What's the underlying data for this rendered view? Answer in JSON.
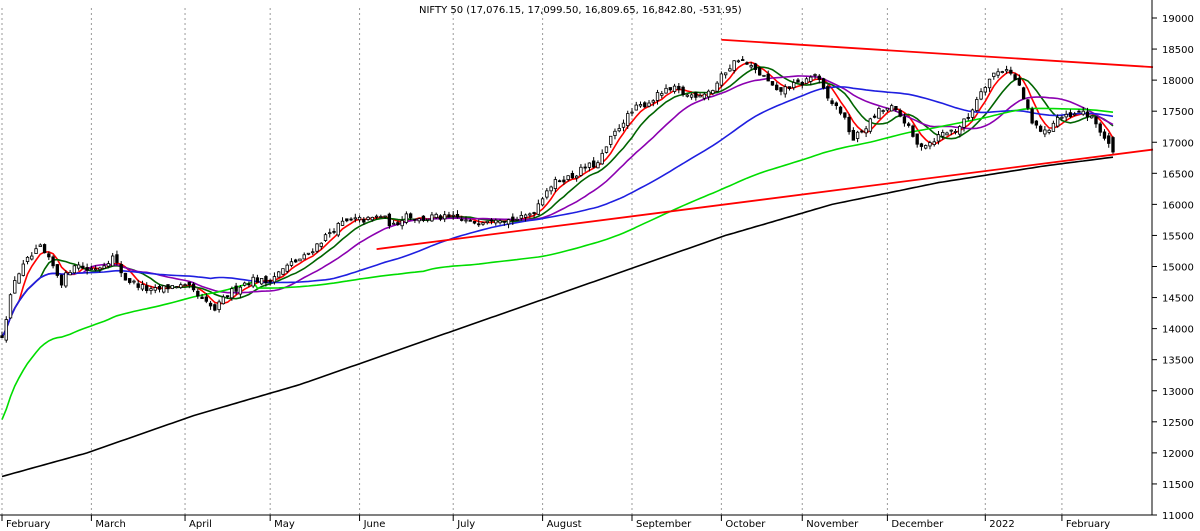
{
  "chart_data": {
    "type": "candlestick",
    "title": "NIFTY 50 (17,076.15, 17,099.50, 16,809.65, 16,842.80, -531.95)",
    "ylim": [
      11000,
      19000
    ],
    "y_ticks": [
      11000,
      11500,
      12000,
      12500,
      13000,
      13500,
      14000,
      14500,
      15000,
      15500,
      16000,
      16500,
      17000,
      17500,
      18000,
      18500,
      19000
    ],
    "y_tick_labels": [
      "11000",
      "11500",
      "12000",
      "12500",
      "13000",
      "13500",
      "14000",
      "14500",
      "15000",
      "15500",
      "16000",
      "16500",
      "17000",
      "17500",
      "18000",
      "18500",
      "19000"
    ],
    "x_month_labels": [
      "February",
      "March",
      "April",
      "May",
      "June",
      "July",
      "August",
      "September",
      "October",
      "November",
      "December",
      "2022",
      "February"
    ],
    "x_month_index": [
      0,
      21,
      43,
      63,
      84,
      106,
      127,
      148,
      169,
      188,
      208,
      231,
      249
    ],
    "n_days": 262,
    "grid": "vertical-dotted",
    "colors": {
      "price": "#000000",
      "ma_red": "#ff0000",
      "ma_darkgreen": "#006400",
      "ma_purple": "#8b00b0",
      "ma_blue": "#1f1fe0",
      "ma_green": "#00dd00",
      "ma_black": "#000000",
      "trendline": "#ff0000"
    },
    "price_anchors": [
      [
        0,
        13900
      ],
      [
        3,
        14800
      ],
      [
        6,
        15100
      ],
      [
        9,
        15300
      ],
      [
        12,
        15000
      ],
      [
        14,
        14750
      ],
      [
        17,
        15050
      ],
      [
        20,
        14950
      ],
      [
        23,
        15000
      ],
      [
        26,
        15150
      ],
      [
        29,
        14800
      ],
      [
        32,
        14700
      ],
      [
        35,
        14600
      ],
      [
        38,
        14650
      ],
      [
        41,
        14700
      ],
      [
        44,
        14650
      ],
      [
        47,
        14450
      ],
      [
        50,
        14300
      ],
      [
        53,
        14550
      ],
      [
        56,
        14700
      ],
      [
        59,
        14800
      ],
      [
        62,
        14750
      ],
      [
        65,
        14900
      ],
      [
        68,
        15050
      ],
      [
        71,
        15150
      ],
      [
        74,
        15350
      ],
      [
        77,
        15550
      ],
      [
        80,
        15700
      ],
      [
        83,
        15750
      ],
      [
        86,
        15750
      ],
      [
        89,
        15820
      ],
      [
        92,
        15650
      ],
      [
        95,
        15850
      ],
      [
        98,
        15750
      ],
      [
        101,
        15800
      ],
      [
        104,
        15780
      ],
      [
        107,
        15780
      ],
      [
        110,
        15700
      ],
      [
        113,
        15750
      ],
      [
        116,
        15800
      ],
      [
        119,
        15750
      ],
      [
        122,
        15770
      ],
      [
        125,
        15900
      ],
      [
        128,
        16250
      ],
      [
        131,
        16400
      ],
      [
        134,
        16450
      ],
      [
        137,
        16600
      ],
      [
        140,
        16650
      ],
      [
        143,
        17050
      ],
      [
        146,
        17350
      ],
      [
        149,
        17550
      ],
      [
        152,
        17650
      ],
      [
        155,
        17800
      ],
      [
        158,
        17850
      ],
      [
        161,
        17750
      ],
      [
        164,
        17780
      ],
      [
        167,
        17850
      ],
      [
        170,
        18150
      ],
      [
        173,
        18350
      ],
      [
        176,
        18200
      ],
      [
        179,
        18050
      ],
      [
        182,
        17800
      ],
      [
        185,
        17900
      ],
      [
        188,
        17950
      ],
      [
        191,
        18100
      ],
      [
        194,
        17700
      ],
      [
        197,
        17500
      ],
      [
        200,
        17050
      ],
      [
        203,
        17250
      ],
      [
        206,
        17500
      ],
      [
        209,
        17550
      ],
      [
        212,
        17350
      ],
      [
        215,
        16950
      ],
      [
        218,
        17000
      ],
      [
        221,
        17150
      ],
      [
        224,
        17200
      ],
      [
        227,
        17400
      ],
      [
        230,
        17850
      ],
      [
        233,
        18100
      ],
      [
        236,
        18200
      ],
      [
        239,
        17900
      ],
      [
        242,
        17300
      ],
      [
        245,
        17150
      ],
      [
        248,
        17400
      ],
      [
        251,
        17400
      ],
      [
        254,
        17500
      ],
      [
        257,
        17300
      ],
      [
        261,
        16843
      ]
    ],
    "ma_series": [
      {
        "color_key": "ma_red",
        "period": 5
      },
      {
        "color_key": "ma_darkgreen",
        "period": 10
      },
      {
        "color_key": "ma_purple",
        "period": 20
      },
      {
        "color_key": "ma_blue",
        "period": 50
      },
      {
        "color_key": "ma_green",
        "period": 100
      },
      {
        "color_key": "ma_black",
        "period": 200
      }
    ],
    "long_ma_anchors": [
      [
        0,
        11620
      ],
      [
        20,
        12000
      ],
      [
        45,
        12600
      ],
      [
        70,
        13100
      ],
      [
        95,
        13700
      ],
      [
        120,
        14300
      ],
      [
        145,
        14900
      ],
      [
        170,
        15500
      ],
      [
        195,
        16000
      ],
      [
        220,
        16350
      ],
      [
        245,
        16620
      ],
      [
        261,
        16760
      ]
    ],
    "trendlines": [
      {
        "from": [
          169,
          18650
        ],
        "to": [
          261,
          18250
        ]
      },
      {
        "from": [
          88,
          15280
        ],
        "to": [
          261,
          16800
        ]
      }
    ]
  }
}
